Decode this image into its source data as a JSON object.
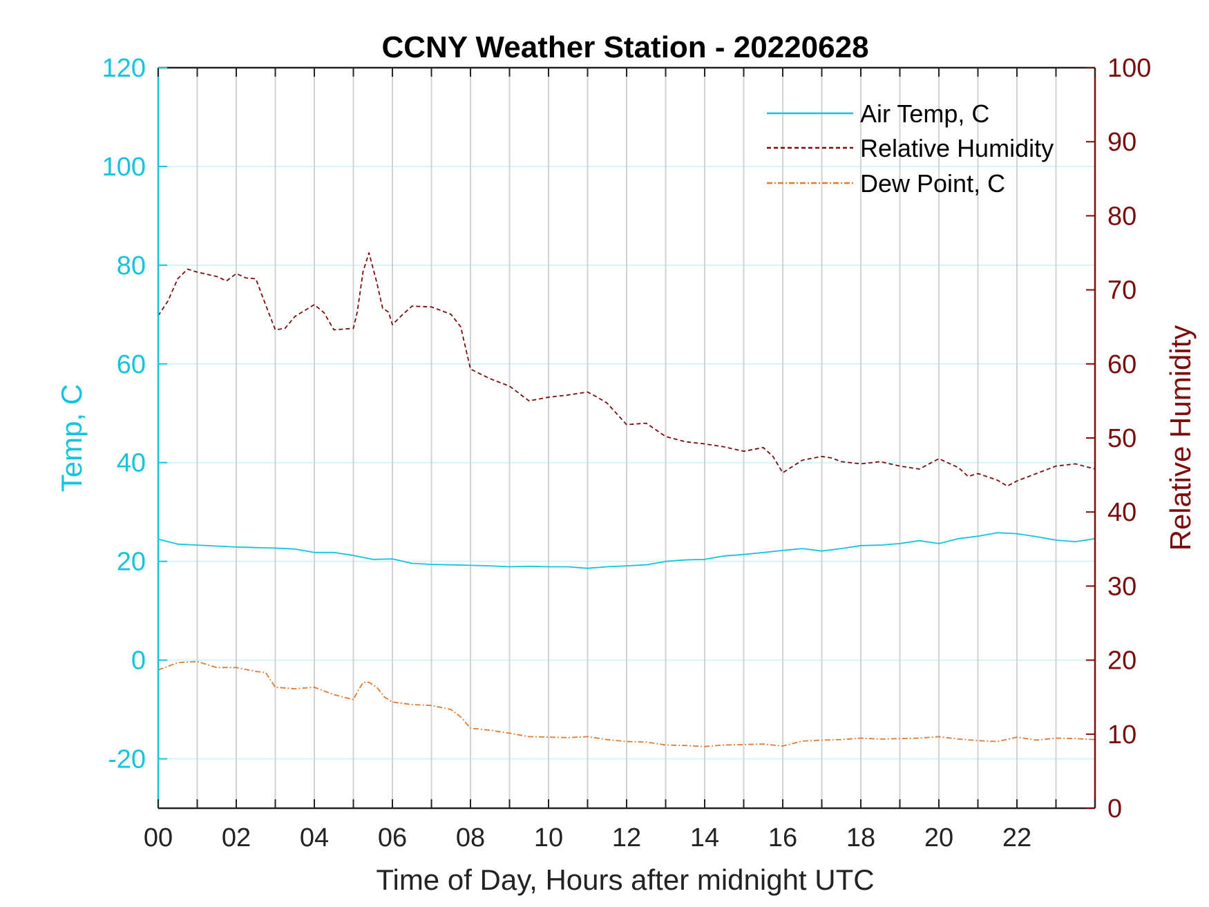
{
  "chart_data": {
    "type": "line",
    "title": "CCNY Weather Station - 20220628",
    "xlabel": "Time of Day, Hours after midnight UTC",
    "ylabel_left": "Temp, C",
    "ylabel_right": "Relative Humidity",
    "xlim": [
      0,
      24
    ],
    "ylim_left": [
      -30,
      120
    ],
    "ylim_right": [
      0,
      100
    ],
    "x_ticks": [
      "00",
      "02",
      "04",
      "06",
      "08",
      "10",
      "12",
      "14",
      "16",
      "18",
      "20",
      "22"
    ],
    "y_ticks_left": [
      "120",
      "100",
      "80",
      "60",
      "40",
      "20",
      "0",
      "-20"
    ],
    "y_ticks_right": [
      "100",
      "90",
      "80",
      "70",
      "60",
      "50",
      "40",
      "30",
      "20",
      "10",
      "0"
    ],
    "grid": true,
    "legend_position": "top-right",
    "colors": {
      "air_temp": "#12c4de",
      "relative_humidity": "#7a0c0c",
      "dew_point": "#e07a30",
      "vgrid": "#cfd3d8",
      "hgrid": "#d4f2f8"
    },
    "series": [
      {
        "name": "Air Temp, C",
        "axis": "left",
        "style": "solid",
        "x": [
          0,
          0.5,
          1,
          1.5,
          2,
          2.5,
          3,
          3.5,
          4,
          4.5,
          5,
          5.5,
          6,
          6.5,
          7,
          7.5,
          8,
          8.5,
          9,
          9.5,
          10,
          10.5,
          11,
          11.5,
          12,
          12.5,
          13,
          13.5,
          14,
          14.5,
          15,
          15.5,
          16,
          16.5,
          17,
          17.5,
          18,
          18.5,
          19,
          19.5,
          20,
          20.5,
          21,
          21.5,
          22,
          22.5,
          23,
          23.5,
          24
        ],
        "y": [
          24.5,
          23.5,
          23.3,
          23.1,
          22.9,
          22.8,
          22.7,
          22.5,
          21.8,
          21.8,
          21.2,
          20.4,
          20.5,
          19.6,
          19.4,
          19.3,
          19.2,
          19.1,
          18.9,
          19.0,
          18.9,
          18.9,
          18.6,
          18.9,
          19.1,
          19.3,
          20.0,
          20.3,
          20.4,
          21.1,
          21.4,
          21.8,
          22.2,
          22.6,
          22.1,
          22.6,
          23.2,
          23.3,
          23.6,
          24.2,
          23.6,
          24.6,
          25.1,
          25.8,
          25.6,
          25.0,
          24.3,
          24.0,
          24.6
        ]
      },
      {
        "name": "Relative Humidity",
        "axis": "right",
        "style": "dashed",
        "x": [
          0,
          0.25,
          0.5,
          0.75,
          1,
          1.5,
          1.75,
          2,
          2.25,
          2.5,
          2.75,
          3,
          3.25,
          3.5,
          4,
          4.25,
          4.5,
          5,
          5.1,
          5.25,
          5.4,
          5.6,
          5.75,
          5.9,
          6,
          6.25,
          6.5,
          7,
          7.5,
          7.75,
          8,
          8.5,
          9,
          9.5,
          10,
          10.5,
          11,
          11.25,
          11.5,
          12,
          12.5,
          13,
          13.5,
          14,
          14.5,
          15,
          15.5,
          15.75,
          16,
          16.5,
          17,
          17.25,
          17.5,
          18,
          18.5,
          19,
          19.5,
          20,
          20.5,
          20.75,
          21,
          21.5,
          21.75,
          22,
          22.5,
          23,
          23.5,
          24
        ],
        "y": [
          66.5,
          68.5,
          71.5,
          72.8,
          72.4,
          71.8,
          71.2,
          72.2,
          71.6,
          71.5,
          68.0,
          64.6,
          64.8,
          66.4,
          68.0,
          66.9,
          64.6,
          64.8,
          67.0,
          72.5,
          75.0,
          71.0,
          67.5,
          67.0,
          65.3,
          66.6,
          67.8,
          67.7,
          66.7,
          65.0,
          59.3,
          58.0,
          57.0,
          55.0,
          55.5,
          55.8,
          56.2,
          55.5,
          54.7,
          51.8,
          52.0,
          50.2,
          49.5,
          49.2,
          48.8,
          48.2,
          48.7,
          47.5,
          45.3,
          47.0,
          47.5,
          47.3,
          46.8,
          46.5,
          46.8,
          46.2,
          45.8,
          47.2,
          46.0,
          44.8,
          45.2,
          44.3,
          43.5,
          44.2,
          45.2,
          46.2,
          46.5,
          45.8
        ]
      },
      {
        "name": "Dew Point, C",
        "axis": "left",
        "style": "dashdot",
        "x": [
          0,
          0.5,
          1,
          1.5,
          2,
          2.5,
          2.75,
          3,
          3.5,
          4,
          4.5,
          5,
          5.1,
          5.25,
          5.4,
          5.6,
          5.8,
          6,
          6.5,
          7,
          7.5,
          7.75,
          8,
          8.5,
          9,
          9.5,
          10,
          10.5,
          11,
          11.5,
          12,
          12.5,
          13,
          13.5,
          14,
          14.5,
          15,
          15.5,
          16,
          16.5,
          17,
          17.5,
          18,
          18.5,
          19,
          19.5,
          20,
          20.5,
          21,
          21.5,
          22,
          22.5,
          23,
          23.5,
          24
        ],
        "y": [
          -2.0,
          -0.5,
          -0.3,
          -1.5,
          -1.5,
          -2.3,
          -2.5,
          -5.5,
          -5.8,
          -5.5,
          -7.0,
          -8.0,
          -6.5,
          -4.5,
          -4.5,
          -5.5,
          -7.5,
          -8.5,
          -9.0,
          -9.2,
          -10.0,
          -11.5,
          -13.8,
          -14.2,
          -14.8,
          -15.5,
          -15.6,
          -15.7,
          -15.5,
          -16.1,
          -16.5,
          -16.6,
          -17.2,
          -17.3,
          -17.5,
          -17.2,
          -17.1,
          -17.0,
          -17.4,
          -16.4,
          -16.2,
          -16.1,
          -15.8,
          -16.0,
          -15.9,
          -15.8,
          -15.5,
          -16.0,
          -16.3,
          -16.5,
          -15.6,
          -16.2,
          -15.8,
          -15.9,
          -16.1
        ]
      }
    ]
  }
}
